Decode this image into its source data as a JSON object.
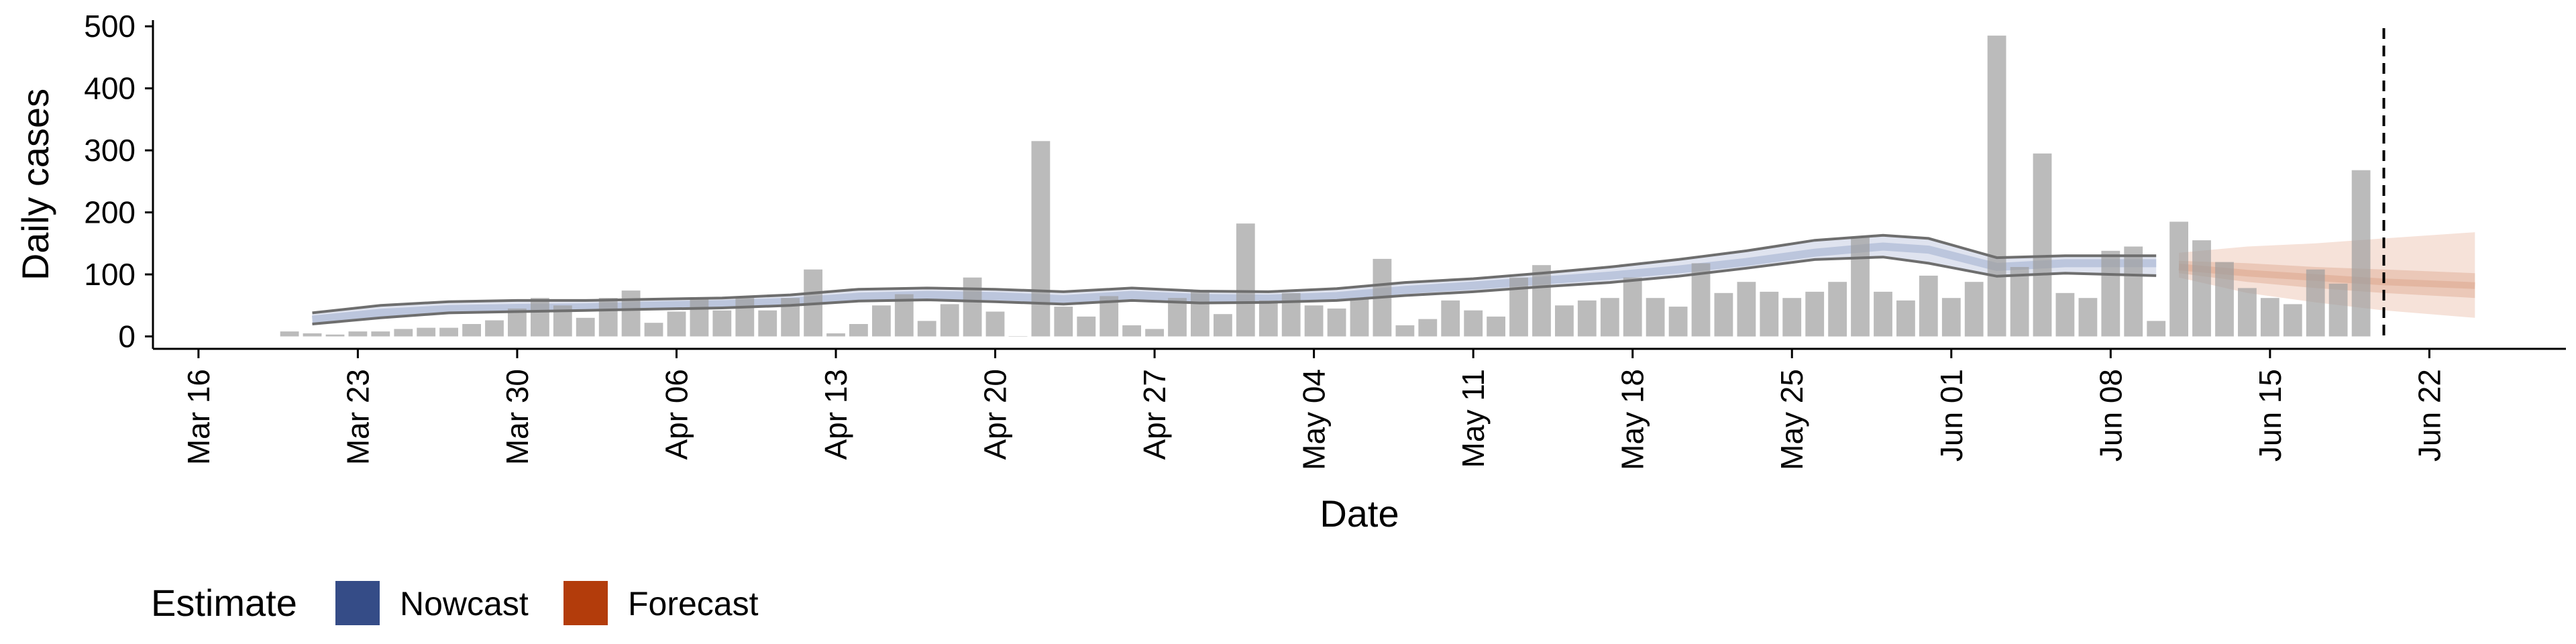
{
  "chart_data": {
    "type": "bar",
    "xlabel": "Date",
    "ylabel": "Daily cases",
    "ylim": [
      -20,
      510
    ],
    "yticks": [
      0,
      100,
      200,
      300,
      400,
      500
    ],
    "xlim": [
      "2020-03-14",
      "2020-06-28"
    ],
    "x_tick_labels": [
      {
        "date": "2020-03-16",
        "label": "Mar 16"
      },
      {
        "date": "2020-03-23",
        "label": "Mar 23"
      },
      {
        "date": "2020-03-30",
        "label": "Mar 30"
      },
      {
        "date": "2020-04-06",
        "label": "Apr 06"
      },
      {
        "date": "2020-04-13",
        "label": "Apr 13"
      },
      {
        "date": "2020-04-20",
        "label": "Apr 20"
      },
      {
        "date": "2020-04-27",
        "label": "Apr 27"
      },
      {
        "date": "2020-05-04",
        "label": "May 04"
      },
      {
        "date": "2020-05-11",
        "label": "May 11"
      },
      {
        "date": "2020-05-18",
        "label": "May 18"
      },
      {
        "date": "2020-05-25",
        "label": "May 25"
      },
      {
        "date": "2020-06-01",
        "label": "Jun 01"
      },
      {
        "date": "2020-06-08",
        "label": "Jun 08"
      },
      {
        "date": "2020-06-15",
        "label": "Jun 15"
      },
      {
        "date": "2020-06-22",
        "label": "Jun 22"
      }
    ],
    "bars": {
      "start_date": "2020-03-20",
      "values": [
        8,
        5,
        3,
        8,
        8,
        12,
        14,
        14,
        20,
        26,
        45,
        62,
        50,
        30,
        62,
        74,
        22,
        40,
        60,
        42,
        62,
        42,
        62,
        108,
        5,
        20,
        50,
        68,
        25,
        52,
        95,
        40,
        0,
        315,
        48,
        32,
        65,
        18,
        12,
        62,
        75,
        36,
        182,
        58,
        70,
        50,
        45,
        62,
        125,
        18,
        28,
        58,
        42,
        32,
        95,
        115,
        50,
        58,
        62,
        95,
        62,
        48,
        118,
        70,
        88,
        72,
        62,
        72,
        88,
        160,
        72,
        58,
        98,
        62,
        88,
        485,
        112,
        295,
        70,
        62,
        138,
        145,
        25,
        185,
        155,
        120,
        78,
        62,
        52,
        108,
        85,
        268
      ]
    },
    "vline_date": "2020-06-20",
    "series": [
      {
        "name": "Nowcast",
        "color": "#354c87",
        "dates": [
          "2020-03-21",
          "2020-03-24",
          "2020-03-27",
          "2020-03-30",
          "2020-04-02",
          "2020-04-05",
          "2020-04-08",
          "2020-04-11",
          "2020-04-14",
          "2020-04-17",
          "2020-04-20",
          "2020-04-23",
          "2020-04-26",
          "2020-04-29",
          "2020-05-02",
          "2020-05-05",
          "2020-05-08",
          "2020-05-11",
          "2020-05-14",
          "2020-05-17",
          "2020-05-20",
          "2020-05-23",
          "2020-05-26",
          "2020-05-29",
          "2020-05-31",
          "2020-06-03",
          "2020-06-06",
          "2020-06-10"
        ],
        "median": [
          27,
          38,
          44,
          46,
          47,
          50,
          52,
          56,
          64,
          67,
          65,
          60,
          67,
          62,
          61,
          65,
          75,
          82,
          90,
          98,
          108,
          120,
          135,
          145,
          140,
          112,
          118,
          118
        ],
        "lower": [
          20,
          30,
          38,
          40,
          42,
          44,
          46,
          50,
          57,
          59,
          56,
          52,
          58,
          54,
          55,
          58,
          66,
          72,
          80,
          87,
          97,
          110,
          124,
          128,
          118,
          97,
          102,
          98
        ],
        "upper": [
          38,
          50,
          56,
          58,
          58,
          60,
          62,
          67,
          76,
          78,
          76,
          72,
          78,
          73,
          72,
          77,
          87,
          93,
          102,
          112,
          124,
          138,
          155,
          163,
          158,
          127,
          130,
          130
        ]
      },
      {
        "name": "Forecast",
        "color": "#b33c0b",
        "dates": [
          "2020-06-11",
          "2020-06-14",
          "2020-06-17",
          "2020-06-20",
          "2020-06-24"
        ],
        "median": [
          112,
          102,
          95,
          88,
          82
        ],
        "lower": [
          95,
          70,
          55,
          42,
          30
        ],
        "upper": [
          135,
          145,
          150,
          158,
          168
        ],
        "inner_lower": [
          102,
          88,
          78,
          70,
          62
        ],
        "inner_upper": [
          122,
          118,
          112,
          108,
          102
        ]
      }
    ],
    "legend": {
      "title": "Estimate",
      "position": "bottom-left",
      "entries": [
        {
          "label": "Nowcast",
          "color": "#354c87"
        },
        {
          "label": "Forecast",
          "color": "#b33c0b"
        }
      ]
    },
    "grid": false
  }
}
